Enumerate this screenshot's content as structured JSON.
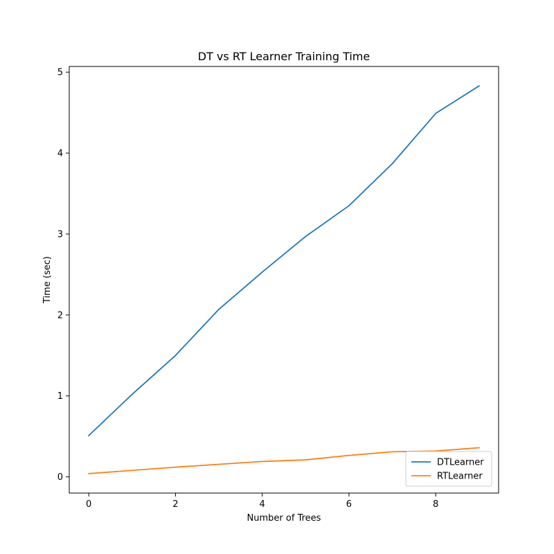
{
  "chart_data": {
    "type": "line",
    "title": "DT vs RT Learner Training Time",
    "xlabel": "Number of Trees",
    "ylabel": "Time (sec)",
    "x": [
      0,
      1,
      2,
      3,
      4,
      5,
      6,
      7,
      8,
      9
    ],
    "xlim": [
      -0.45,
      9.45
    ],
    "ylim": [
      -0.2,
      5.07
    ],
    "xticks": [
      0,
      2,
      4,
      6,
      8
    ],
    "yticks": [
      0,
      1,
      2,
      3,
      4,
      5
    ],
    "grid": false,
    "legend_position": "lower-right",
    "series": [
      {
        "name": "DTLearner",
        "color": "#1f77b4",
        "values": [
          0.51,
          1.02,
          1.5,
          2.07,
          2.53,
          2.97,
          3.35,
          3.87,
          4.49,
          4.83
        ]
      },
      {
        "name": "RTLearner",
        "color": "#ff7f0e",
        "values": [
          0.04,
          0.08,
          0.12,
          0.155,
          0.19,
          0.21,
          0.265,
          0.31,
          0.32,
          0.36
        ]
      }
    ]
  }
}
